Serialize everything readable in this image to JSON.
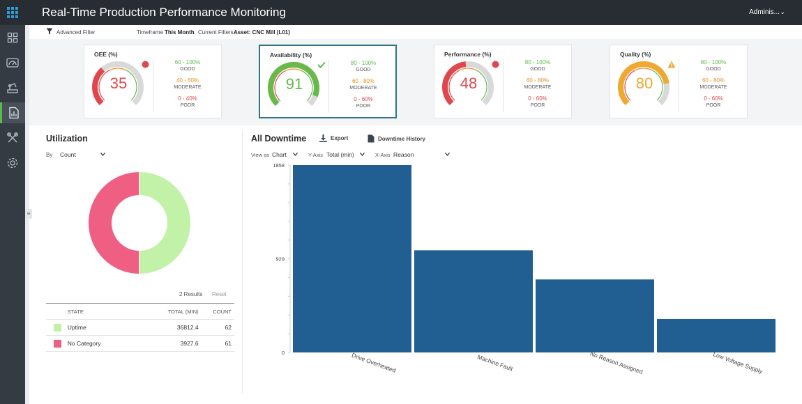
{
  "header": {
    "title": "Real-Time Production Performance Monitoring",
    "user": "Adminis...",
    "user_chevron": "⌄"
  },
  "sidebar": {
    "items": [
      {
        "icon": "dashboard-icon"
      },
      {
        "icon": "gauge-icon"
      },
      {
        "icon": "machine-icon"
      },
      {
        "icon": "report-icon",
        "active": true
      },
      {
        "icon": "tools-icon"
      },
      {
        "icon": "gear-icon"
      }
    ],
    "accent": "#5dbb4a"
  },
  "filters": {
    "advanced": "Advanced Filter",
    "timeframe_label": "Timeframe",
    "timeframe_value": "This Month",
    "current_label": "Current Filters",
    "current_value": "Asset: CNC Mill (L01)"
  },
  "kpis": [
    {
      "title": "OEE (%)",
      "value": "35",
      "color": "#e0474c",
      "status": "alert",
      "legend": [
        {
          "range": "60 - 100%",
          "label": "GOOD"
        },
        {
          "range": "40 - 60%",
          "label": "MODERATE"
        },
        {
          "range": "0 - 40%",
          "label": "POOR"
        }
      ]
    },
    {
      "title": "Availability (%)",
      "value": "91",
      "color": "#6ab84a",
      "status": "check",
      "legend": [
        {
          "range": "80 - 100%",
          "label": "GOOD"
        },
        {
          "range": "60 - 80%",
          "label": "MODERATE"
        },
        {
          "range": "0 - 60%",
          "label": "POOR"
        }
      ]
    },
    {
      "title": "Performance (%)",
      "value": "48",
      "color": "#e0474c",
      "status": "alert",
      "legend": [
        {
          "range": "80 - 100%",
          "label": "GOOD"
        },
        {
          "range": "60 - 80%",
          "label": "MODERATE"
        },
        {
          "range": "0 - 60%",
          "label": "POOR"
        }
      ]
    },
    {
      "title": "Quality (%)",
      "value": "80",
      "color": "#f0a830",
      "status": "warning",
      "legend": [
        {
          "range": "80 - 100%",
          "label": "GOOD"
        },
        {
          "range": "60 - 80%",
          "label": "MODERATE"
        },
        {
          "range": "0 - 60%",
          "label": "POOR"
        }
      ]
    }
  ],
  "colors": {
    "good": "#5dbb4a",
    "moderate": "#f08a1c",
    "poor": "#e0474c",
    "bar": "#215f93"
  },
  "utilization": {
    "title": "Utilization",
    "by_label": "By",
    "by_value": "Count",
    "results": "2 Results",
    "reset": "Reset",
    "columns": [
      "STATE",
      "TOTAL (MIN)",
      "COUNT"
    ],
    "rows": [
      {
        "state": "Uptime",
        "total": "36812.4",
        "count": "62",
        "color": "#c1f2a8"
      },
      {
        "state": "No Category",
        "total": "3927.6",
        "count": "61",
        "color": "#ee5f83"
      }
    ]
  },
  "downtime": {
    "title": "All Downtime",
    "export": "Export",
    "history": "Downtime History",
    "view_label": "View as",
    "view_value": "Chart",
    "y_label": "Y-Axis",
    "y_value": "Total (min)",
    "x_label": "X-Axis",
    "x_value": "Reason"
  },
  "chart_data": {
    "type": "bar",
    "categories": [
      "Drive Overheated",
      "Machine Fault",
      "No Reason Assigned",
      "Low Voltage Supply"
    ],
    "values": [
      1858,
      1013,
      724,
      332
    ],
    "yticks": [
      0,
      929,
      1858
    ],
    "ylim": [
      0,
      1858
    ],
    "grid": false
  }
}
